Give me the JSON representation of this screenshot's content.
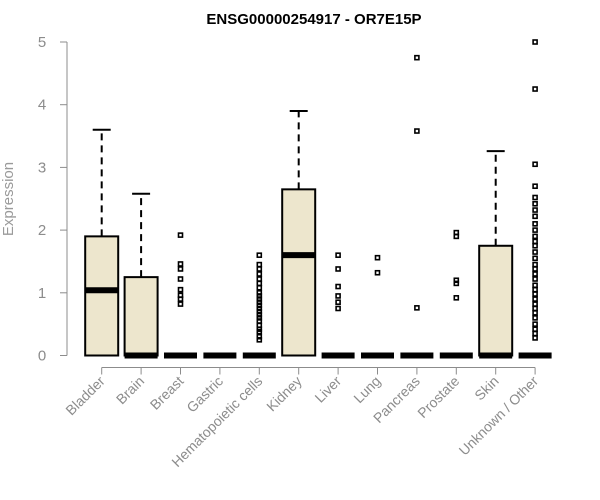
{
  "chart_data": {
    "type": "boxplot",
    "title": "ENSG00000254917 - OR7E15P",
    "ylabel": "Expression",
    "xlabel": "",
    "ylim": [
      0,
      5
    ],
    "yticks": [
      0,
      1,
      2,
      3,
      4,
      5
    ],
    "grid": false,
    "box_color": "#ede6cd",
    "categories": [
      "Bladder",
      "Brain",
      "Breast",
      "Gastric",
      "Hematopoietic cells",
      "Kidney",
      "Liver",
      "Lung",
      "Pancreas",
      "Prostate",
      "Skin",
      "Unknown / Other"
    ],
    "series": [
      {
        "category": "Bladder",
        "min": 0,
        "q1": 0,
        "median": 1.04,
        "q3": 1.9,
        "max": 3.6,
        "outliers": []
      },
      {
        "category": "Brain",
        "min": 0,
        "q1": 0,
        "median": 0,
        "q3": 1.25,
        "max": 2.58,
        "outliers": []
      },
      {
        "category": "Breast",
        "min": 0,
        "q1": 0,
        "median": 0,
        "q3": 0,
        "max": 0,
        "outliers": [
          1.92,
          1.46,
          1.38,
          1.22,
          1.05,
          0.96,
          0.9,
          0.82
        ]
      },
      {
        "category": "Gastric",
        "min": 0,
        "q1": 0,
        "median": 0,
        "q3": 0,
        "max": 0,
        "outliers": []
      },
      {
        "category": "Hematopoietic cells",
        "min": 0,
        "q1": 0,
        "median": 0,
        "q3": 0,
        "max": 0,
        "outliers": [
          1.6,
          1.45,
          1.38,
          1.3,
          1.22,
          1.15,
          1.08,
          1.0,
          0.95,
          0.9,
          0.85,
          0.8,
          0.75,
          0.7,
          0.65,
          0.6,
          0.55,
          0.48,
          0.42,
          0.38,
          0.3,
          0.25
        ]
      },
      {
        "category": "Kidney",
        "min": 0,
        "q1": 0,
        "median": 1.6,
        "q3": 2.65,
        "max": 3.9,
        "outliers": []
      },
      {
        "category": "Liver",
        "min": 0,
        "q1": 0,
        "median": 0,
        "q3": 0,
        "max": 0,
        "outliers": [
          1.6,
          1.38,
          1.1,
          0.95,
          0.85,
          0.75
        ]
      },
      {
        "category": "Lung",
        "min": 0,
        "q1": 0,
        "median": 0,
        "q3": 0,
        "max": 0,
        "outliers": [
          1.56,
          1.32
        ]
      },
      {
        "category": "Pancreas",
        "min": 0,
        "q1": 0,
        "median": 0,
        "q3": 0,
        "max": 0,
        "outliers": [
          4.75,
          3.58,
          0.76
        ]
      },
      {
        "category": "Prostate",
        "min": 0,
        "q1": 0,
        "median": 0,
        "q3": 0,
        "max": 0,
        "outliers": [
          1.96,
          1.9,
          1.2,
          1.15,
          0.92
        ]
      },
      {
        "category": "Skin",
        "min": 0,
        "q1": 0,
        "median": 0,
        "q3": 1.75,
        "max": 3.26,
        "outliers": []
      },
      {
        "category": "Unknown / Other",
        "min": 0,
        "q1": 0,
        "median": 0,
        "q3": 0,
        "max": 0,
        "outliers": [
          5.0,
          4.25,
          3.05,
          2.7,
          2.52,
          2.42,
          2.32,
          2.22,
          2.1,
          2.0,
          1.9,
          1.82,
          1.75,
          1.65,
          1.55,
          1.45,
          1.38,
          1.3,
          1.22,
          1.12,
          1.05,
          0.98,
          0.9,
          0.82,
          0.75,
          0.68,
          0.6,
          0.5,
          0.42,
          0.35,
          0.28
        ]
      }
    ]
  }
}
